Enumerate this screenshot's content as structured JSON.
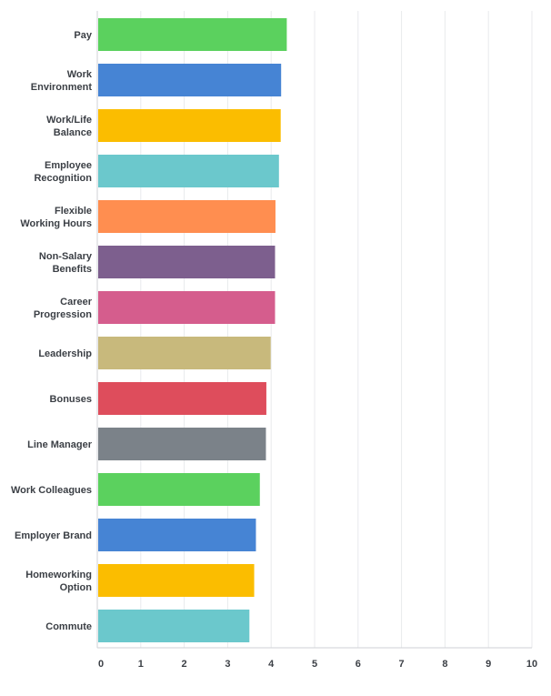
{
  "chart_data": {
    "type": "bar",
    "orientation": "horizontal",
    "categories": [
      [
        "Pay"
      ],
      [
        "Work",
        "Environment"
      ],
      [
        "Work/Life",
        "Balance"
      ],
      [
        "Employee",
        "Recognition"
      ],
      [
        "Flexible",
        "Working Hours"
      ],
      [
        "Non-Salary",
        "Benefits"
      ],
      [
        "Career",
        "Progression"
      ],
      [
        "Leadership"
      ],
      [
        "Bonuses"
      ],
      [
        "Line Manager"
      ],
      [
        "Work Colleagues"
      ],
      [
        "Employer Brand"
      ],
      [
        "Homeworking",
        "Option"
      ],
      [
        "Commute"
      ]
    ],
    "values": [
      4.36,
      4.23,
      4.22,
      4.18,
      4.1,
      4.09,
      4.09,
      3.99,
      3.89,
      3.88,
      3.74,
      3.65,
      3.61,
      3.5
    ],
    "colors": [
      "#5bd15e",
      "#4684d4",
      "#fbbd00",
      "#6bc8cc",
      "#ff8e50",
      "#7d5f8e",
      "#d55d8d",
      "#c8b97c",
      "#de4d5c",
      "#7b8289",
      "#5bd15e",
      "#4684d4",
      "#fbbd00",
      "#6bc8cc"
    ],
    "xlim": [
      0,
      10
    ],
    "xticks": [
      0,
      1,
      2,
      3,
      4,
      5,
      6,
      7,
      8,
      9,
      10
    ],
    "grid": true,
    "title": "",
    "xlabel": "",
    "ylabel": ""
  }
}
